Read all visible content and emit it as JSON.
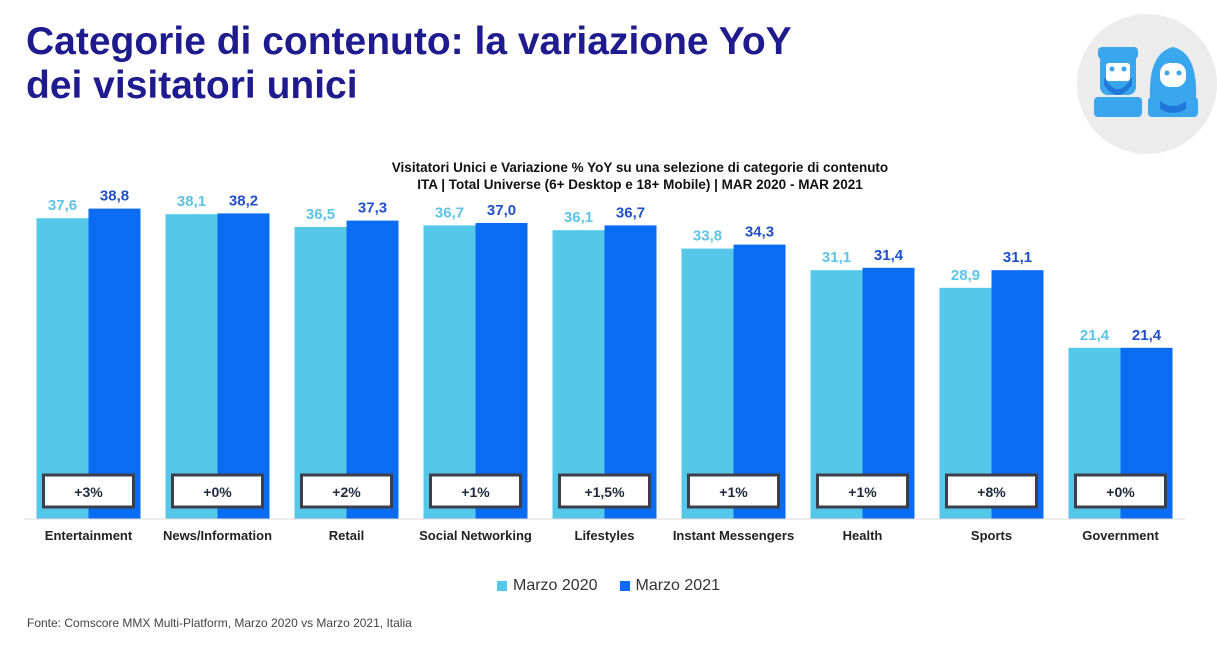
{
  "page": {
    "title_line1": "Categorie di contenuto: la variazione YoY",
    "title_line2": "dei visitatori unici",
    "source": "Fonte: Comscore MMX Multi-Platform, Marzo 2020 vs Marzo 2021, Italia"
  },
  "icons": {
    "badge": "male-female-avatars-icon"
  },
  "colors": {
    "title": "#1f1b8f",
    "series_2020": "#55c8ea",
    "series_2021": "#0a6cf2",
    "label_2020": "#5cc4e8",
    "label_2021": "#1f4fc9",
    "change_box_border": "#3c3f4a",
    "badge_bg": "#ececec",
    "badge_figure": "#3aa6ee",
    "badge_beard": "#1f78d8"
  },
  "chart_data": {
    "type": "bar",
    "title": "Visitatori Unici e Variazione % YoY su una selezione di categorie di contenuto",
    "subtitle": "ITA | Total Universe (6+ Desktop e 18+ Mobile)  | MAR 2020 - MAR 2021",
    "categories": [
      "Entertainment",
      "News/Information",
      "Retail",
      "Social Networking",
      "Lifestyles",
      "Instant Messengers",
      "Health",
      "Sports",
      "Government"
    ],
    "series": [
      {
        "name": "Marzo 2020",
        "values": [
          37.6,
          38.1,
          36.5,
          36.7,
          36.1,
          33.8,
          31.1,
          28.9,
          21.4
        ],
        "labels": [
          "37,6",
          "38,1",
          "36,5",
          "36,7",
          "36,1",
          "33,8",
          "31,1",
          "28,9",
          "21,4"
        ]
      },
      {
        "name": "Marzo 2021",
        "values": [
          38.8,
          38.2,
          37.3,
          37.0,
          36.7,
          34.3,
          31.4,
          31.1,
          21.4
        ],
        "labels": [
          "38,8",
          "38,2",
          "37,3",
          "37,0",
          "36,7",
          "34,3",
          "31,4",
          "31,1",
          "21,4"
        ]
      }
    ],
    "yoy_change": [
      "+3%",
      "+0%",
      "+2%",
      "+1%",
      "+1,5%",
      "+1%",
      "+1%",
      "+8%",
      "+0%"
    ],
    "ylim": [
      0,
      40
    ],
    "grid": false,
    "legend_position": "bottom-center"
  }
}
